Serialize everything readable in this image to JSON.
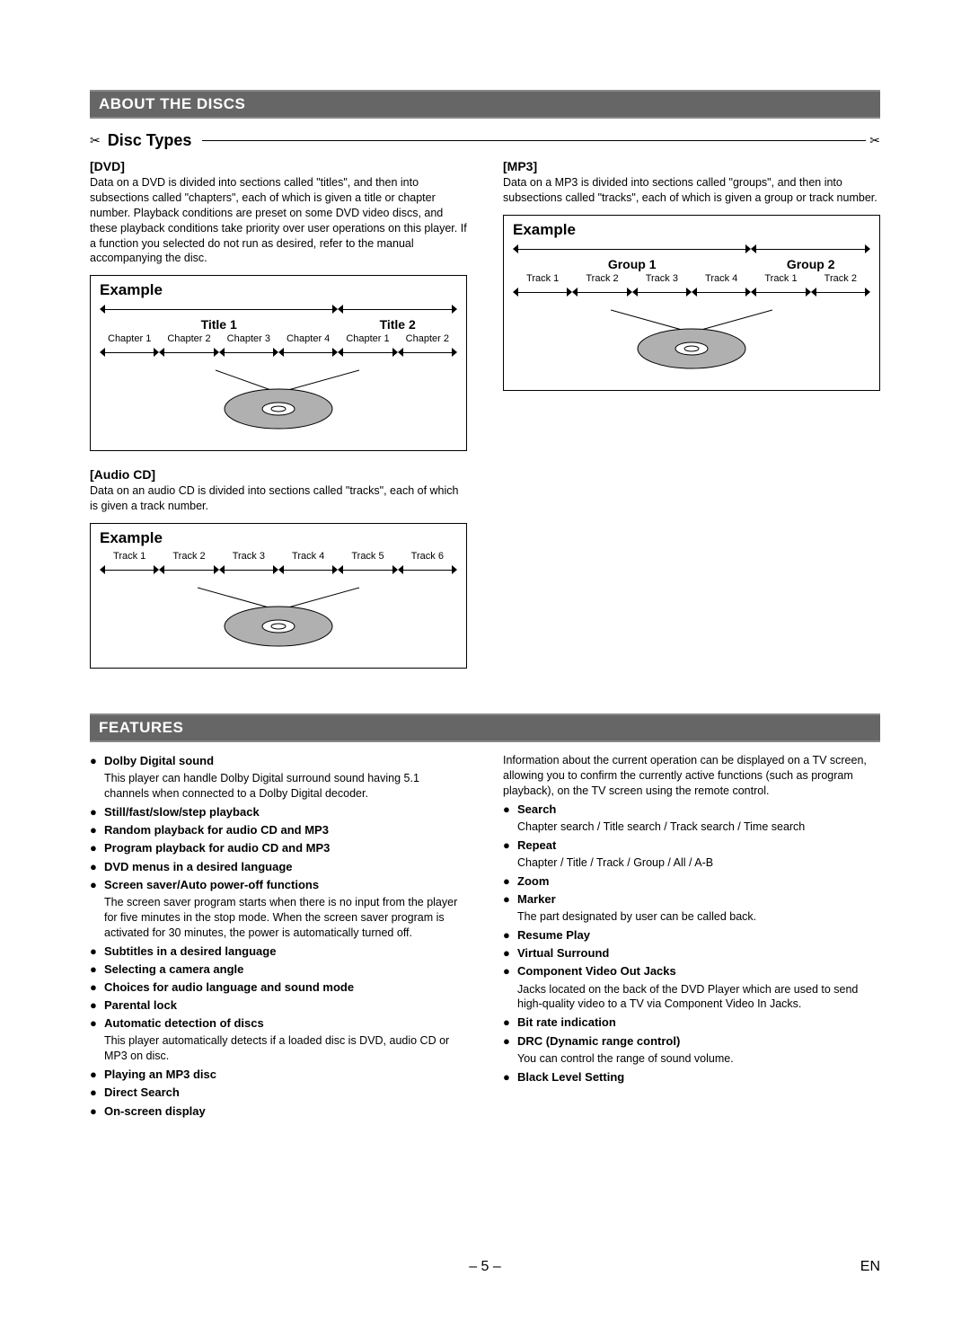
{
  "page": {
    "number": "– 5 –",
    "lang": "EN"
  },
  "about": {
    "header": "ABOUT THE DISCS",
    "subsection": "Disc Types",
    "dvd": {
      "title": "[DVD]",
      "text": "Data on a DVD is divided into sections called \"titles\", and then into subsections called \"chapters\", each of which is given a title or chapter number. Playback conditions are preset on some DVD video discs, and these playback conditions take priority over user operations on this player. If a function you selected do not run as desired, refer to the manual accompanying the disc.",
      "example_label": "Example",
      "titles": [
        "Title 1",
        "Title 2"
      ],
      "chapters": [
        "Chapter 1",
        "Chapter 2",
        "Chapter 3",
        "Chapter 4",
        "Chapter 1",
        "Chapter 2"
      ],
      "title_split": [
        4,
        2
      ]
    },
    "audiocd": {
      "title": "[Audio CD]",
      "text": "Data on an audio CD is divided into sections called \"tracks\", each of which is given a track number.",
      "example_label": "Example",
      "tracks": [
        "Track 1",
        "Track 2",
        "Track 3",
        "Track 4",
        "Track 5",
        "Track 6"
      ]
    },
    "mp3": {
      "title": "[MP3]",
      "text": "Data on a MP3 is divided into sections called \"groups\", and then into subsections called \"tracks\", each of which is given a group or track number.",
      "example_label": "Example",
      "groups": [
        "Group 1",
        "Group 2"
      ],
      "tracks": [
        "Track 1",
        "Track 2",
        "Track 3",
        "Track 4",
        "Track 1",
        "Track 2"
      ],
      "group_split": [
        4,
        2
      ]
    },
    "disc_style": {
      "outer_fill": "#b0b0b0",
      "inner_fill": "#ffffff",
      "stroke": "#000000",
      "rx_outer": 60,
      "ry_outer": 22,
      "rx_mid": 18,
      "ry_mid": 7,
      "rx_hole": 8,
      "ry_hole": 3
    }
  },
  "features": {
    "header": "FEATURES",
    "left": [
      {
        "title": "Dolby Digital sound",
        "desc": "This player can handle Dolby Digital surround sound having 5.1 channels when connected to a Dolby Digital decoder."
      },
      {
        "title": "Still/fast/slow/step playback"
      },
      {
        "title": "Random playback for audio CD and MP3"
      },
      {
        "title": "Program playback for audio CD and MP3"
      },
      {
        "title": "DVD menus in a desired language"
      },
      {
        "title": "Screen saver/Auto power-off functions",
        "desc": "The screen saver program starts when there is no input from the player for five minutes in the stop mode.  When the screen saver program is activated for 30 minutes, the power is automatically turned off."
      },
      {
        "title": "Subtitles in a desired language"
      },
      {
        "title": "Selecting a camera angle"
      },
      {
        "title": "Choices for audio language and sound mode"
      },
      {
        "title": "Parental lock"
      },
      {
        "title": "Automatic detection of discs",
        "desc": "This player automatically detects if a loaded disc is DVD, audio CD or MP3 on disc."
      },
      {
        "title": "Playing an MP3 disc"
      },
      {
        "title": "Direct Search"
      },
      {
        "title": "On-screen display"
      }
    ],
    "right_lead": "Information about the current operation can be displayed on a TV screen, allowing you to confirm the currently active functions (such as program playback), on the TV screen using the remote control.",
    "right": [
      {
        "title": "Search",
        "desc": "Chapter search / Title search / Track search / Time search"
      },
      {
        "title": "Repeat",
        "desc": "Chapter / Title / Track / Group / All / A-B"
      },
      {
        "title": "Zoom"
      },
      {
        "title": "Marker",
        "desc": "The part designated by user can be called back."
      },
      {
        "title": "Resume Play"
      },
      {
        "title": "Virtual Surround"
      },
      {
        "title": "Component Video Out Jacks",
        "desc": "Jacks located on the back of the DVD Player which are used to send high-quality video to a TV via Component Video In Jacks."
      },
      {
        "title": "Bit rate indication"
      },
      {
        "title": "DRC (Dynamic range control)",
        "desc": "You can control the range of sound volume."
      },
      {
        "title": "Black Level Setting"
      }
    ]
  }
}
